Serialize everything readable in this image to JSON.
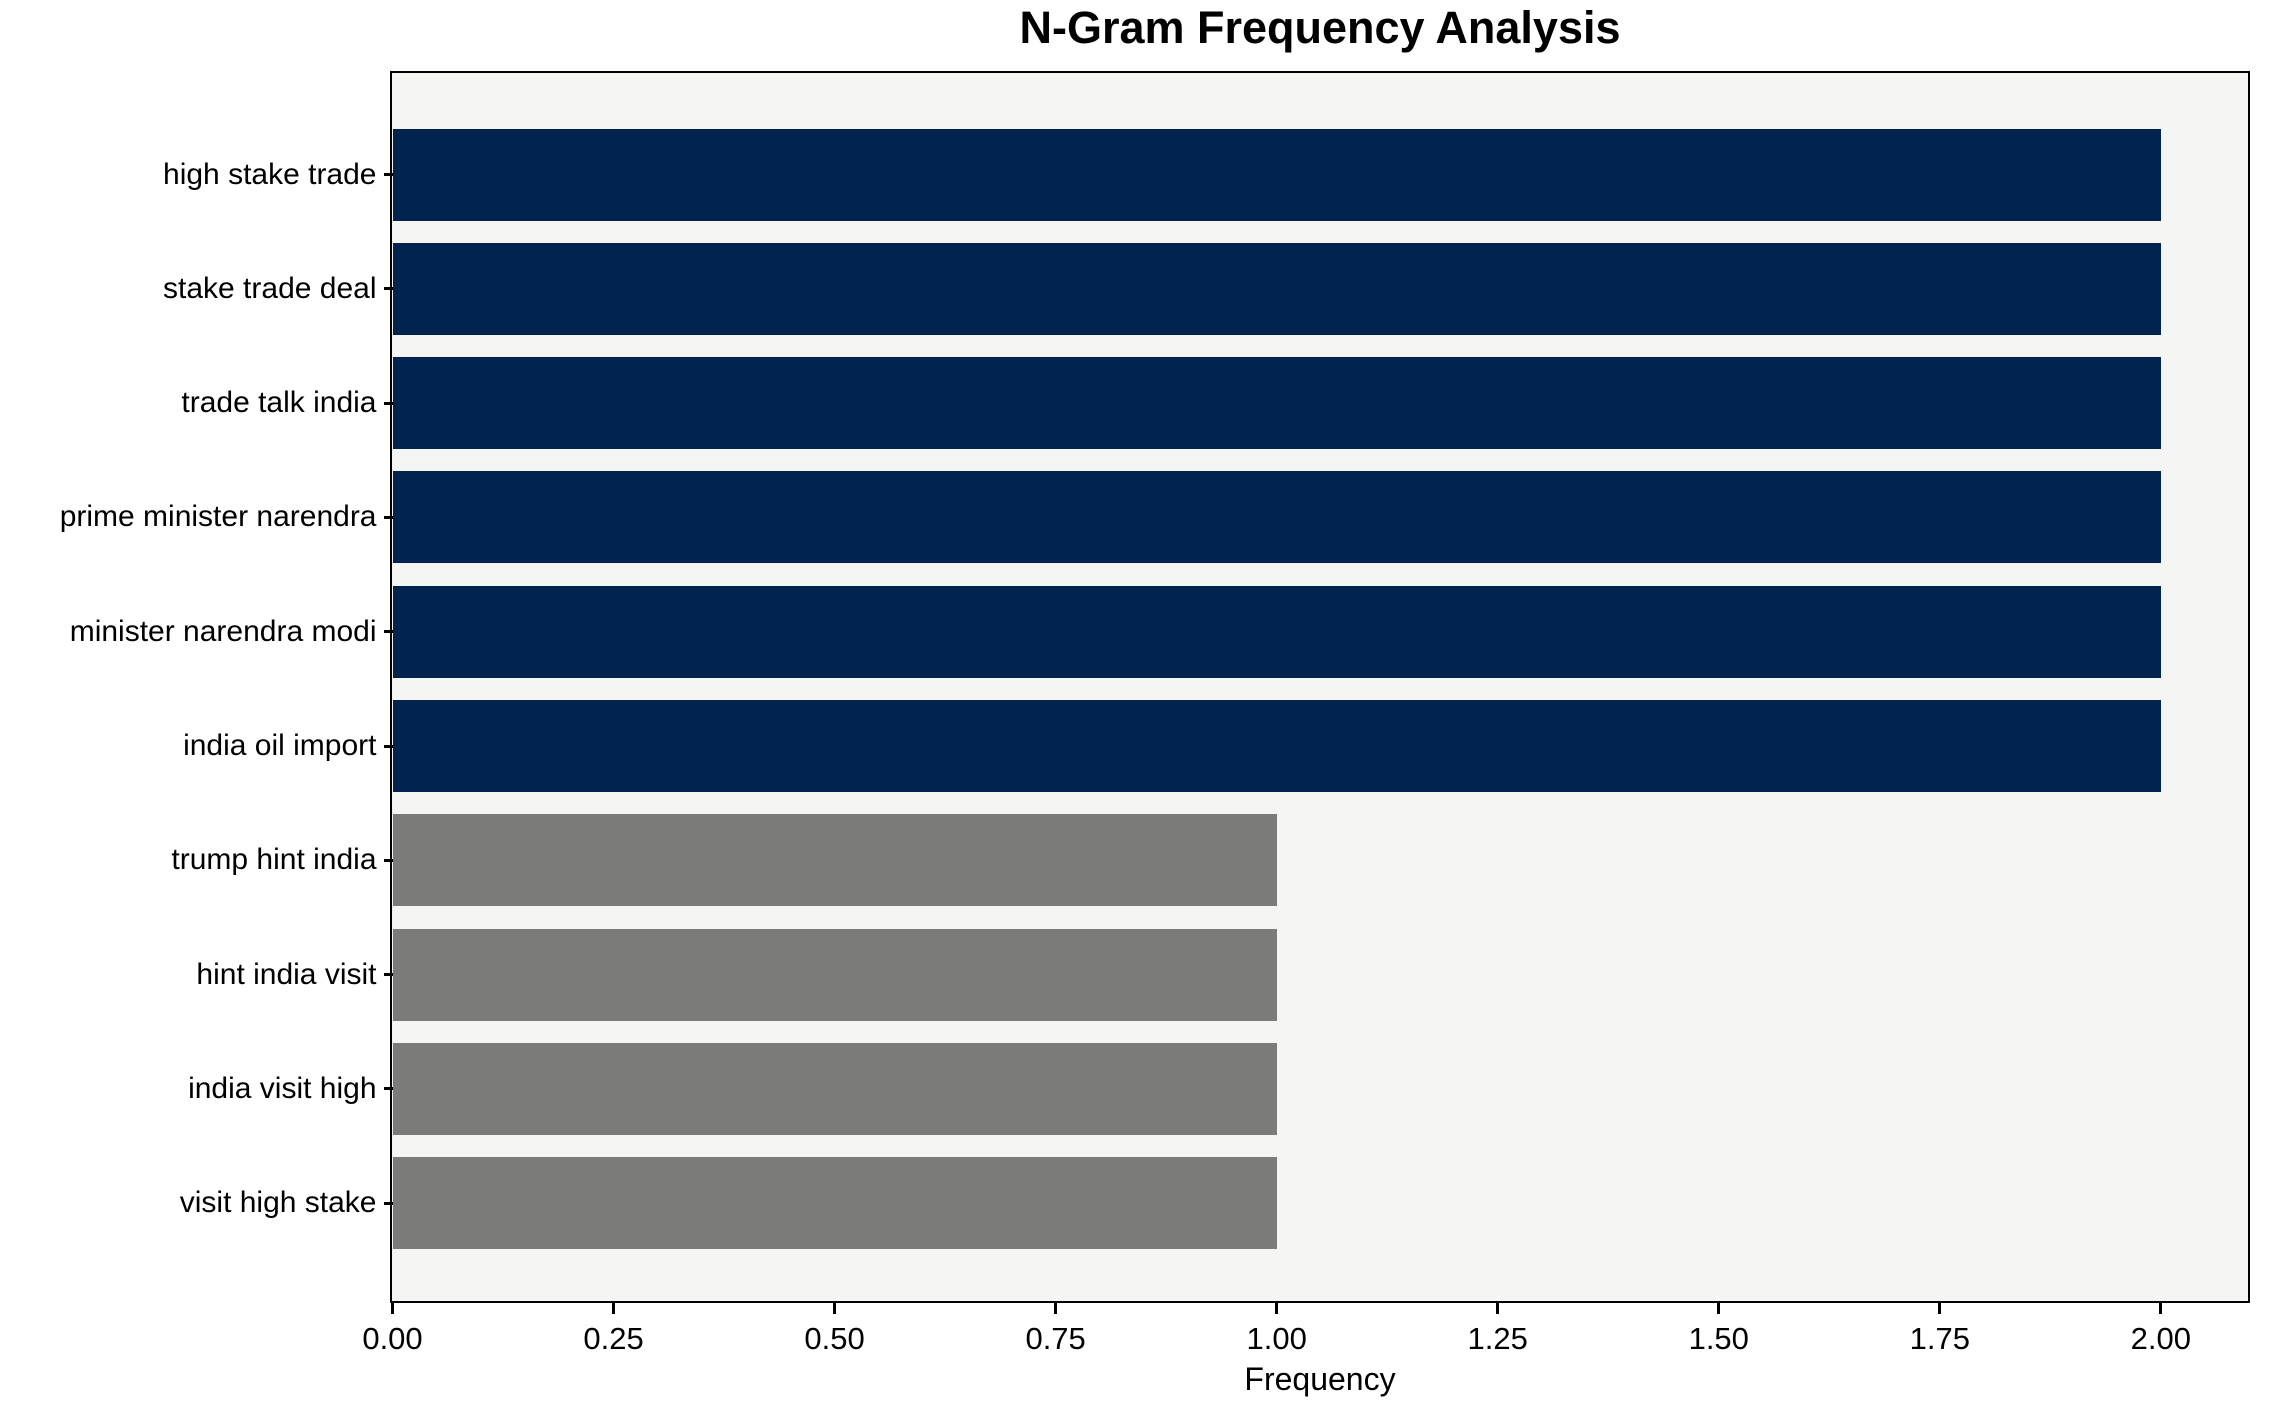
{
  "chart_data": {
    "type": "bar",
    "orientation": "horizontal",
    "title": "N-Gram Frequency Analysis",
    "xlabel": "Frequency",
    "ylabel": "",
    "categories": [
      "high stake trade",
      "stake trade deal",
      "trade talk india",
      "prime minister narendra",
      "minister narendra modi",
      "india oil import",
      "trump hint india",
      "hint india visit",
      "india visit high",
      "visit high stake"
    ],
    "values": [
      2,
      2,
      2,
      2,
      2,
      2,
      1,
      1,
      1,
      1
    ],
    "xlim": [
      0,
      2.098
    ],
    "xticks": [
      0.0,
      0.25,
      0.5,
      0.75,
      1.0,
      1.25,
      1.5,
      1.75,
      2.0
    ],
    "xtick_labels": [
      "0.00",
      "0.25",
      "0.50",
      "0.75",
      "1.00",
      "1.25",
      "1.50",
      "1.75",
      "2.00"
    ],
    "grid": false,
    "legend": "none",
    "colors": {
      "high_value_bar": "#02234d",
      "low_value_bar": "#7b7b79",
      "plot_background": "#f5f5f4",
      "figure_background": "#ffffff",
      "axis": "#000000"
    },
    "color_rule": "bars with frequency 2 are navy, bars with frequency 1 are gray"
  }
}
